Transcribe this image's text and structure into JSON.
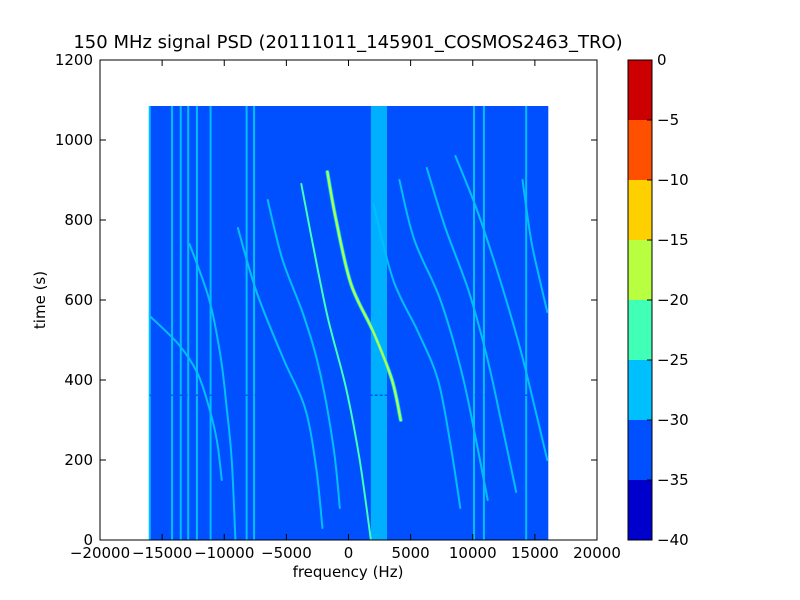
{
  "chart_data": {
    "type": "heatmap",
    "title": "150 MHz signal PSD (20111011_145901_COSMOS2463_TRO)",
    "xlabel": "frequency (Hz)",
    "ylabel": "time (s)",
    "xlim": [
      -20000,
      20000
    ],
    "ylim": [
      0,
      1200
    ],
    "xticks": [
      -20000,
      -15000,
      -10000,
      -5000,
      0,
      5000,
      10000,
      15000,
      20000
    ],
    "xtick_labels": [
      "−20000",
      "−15000",
      "−10000",
      "−5000",
      "0",
      "5000",
      "10000",
      "15000",
      "20000"
    ],
    "yticks": [
      0,
      200,
      400,
      600,
      800,
      1000,
      1200
    ],
    "ytick_labels": [
      "0",
      "200",
      "400",
      "600",
      "800",
      "1000",
      "1200"
    ],
    "data_extent": {
      "x": [
        -16000,
        16000
      ],
      "y": [
        0,
        1085
      ]
    },
    "background_level": -32,
    "colorbar": {
      "ticks": [
        0,
        -5,
        -10,
        -15,
        -20,
        -25,
        -30,
        -35,
        -40
      ],
      "tick_labels": [
        "0",
        "−5",
        "−10",
        "−15",
        "−20",
        "−25",
        "−30",
        "−35",
        "−40"
      ],
      "levels": [
        {
          "range": [
            -40,
            -35
          ],
          "color": "#0000cc"
        },
        {
          "range": [
            -35,
            -30
          ],
          "color": "#0050ff"
        },
        {
          "range": [
            -30,
            -25
          ],
          "color": "#00bfff"
        },
        {
          "range": [
            -25,
            -20
          ],
          "color": "#40ffb7"
        },
        {
          "range": [
            -20,
            -15
          ],
          "color": "#b7ff40"
        },
        {
          "range": [
            -15,
            -10
          ],
          "color": "#ffd000"
        },
        {
          "range": [
            -10,
            -5
          ],
          "color": "#ff5000"
        },
        {
          "range": [
            -5,
            0
          ],
          "color": "#cc0000"
        }
      ]
    },
    "vertical_lines": [
      {
        "x": -16000,
        "y": [
          0,
          1085
        ],
        "level": -28
      },
      {
        "x": -14200,
        "y": [
          0,
          1085
        ],
        "level": -29
      },
      {
        "x": -13500,
        "y": [
          0,
          1085
        ],
        "level": -29
      },
      {
        "x": -12900,
        "y": [
          0,
          1085
        ],
        "level": -29
      },
      {
        "x": -12200,
        "y": [
          0,
          1085
        ],
        "level": -28
      },
      {
        "x": -11100,
        "y": [
          0,
          1085
        ],
        "level": -28
      },
      {
        "x": -8200,
        "y": [
          0,
          1085
        ],
        "level": -26
      },
      {
        "x": -7600,
        "y": [
          0,
          1085
        ],
        "level": -26
      },
      {
        "x": 10100,
        "y": [
          0,
          1085
        ],
        "level": -27
      },
      {
        "x": 10900,
        "y": [
          0,
          1085
        ],
        "level": -28
      },
      {
        "x": 14300,
        "y": [
          0,
          1085
        ],
        "level": -29
      },
      {
        "x": 16000,
        "y": [
          0,
          1085
        ],
        "level": -30
      }
    ],
    "bands": [
      {
        "x": [
          1800,
          3100
        ],
        "y": [
          0,
          1085
        ],
        "level": -29
      }
    ],
    "horizontal_lines": [
      {
        "y": 362,
        "x": [
          -16000,
          16000
        ],
        "level": -30
      }
    ],
    "tracks": [
      {
        "x": [
          -1700,
          -1000,
          200,
          2000,
          3500,
          4200
        ],
        "t": [
          920,
          800,
          640,
          520,
          400,
          300
        ],
        "level": -16
      },
      {
        "x": [
          -3800,
          -3000,
          -1700,
          -200,
          900,
          1800
        ],
        "t": [
          890,
          760,
          560,
          380,
          200,
          0
        ],
        "level": -24
      },
      {
        "x": [
          -6500,
          -5300,
          -3600,
          -2300,
          -1200,
          -700
        ],
        "t": [
          850,
          700,
          560,
          420,
          230,
          80
        ],
        "level": -26
      },
      {
        "x": [
          -8900,
          -7400,
          -5200,
          -3500,
          -2600,
          -2100
        ],
        "t": [
          780,
          620,
          450,
          330,
          180,
          30
        ],
        "level": -28
      },
      {
        "x": [
          -12800,
          -11200,
          -10300,
          -9800,
          -9400,
          -9100
        ],
        "t": [
          740,
          600,
          460,
          330,
          200,
          0
        ],
        "level": -29
      },
      {
        "x": [
          -16000,
          -13700,
          -12200,
          -11300,
          -10600,
          -10200
        ],
        "t": [
          560,
          490,
          420,
          340,
          250,
          150
        ],
        "level": -28
      },
      {
        "x": [
          2000,
          3600,
          5600,
          7200,
          8200,
          9000
        ],
        "t": [
          840,
          650,
          520,
          400,
          240,
          80
        ],
        "level": -25
      },
      {
        "x": [
          4100,
          5300,
          7400,
          9100,
          10200,
          11200
        ],
        "t": [
          900,
          750,
          600,
          420,
          260,
          100
        ],
        "level": -27
      },
      {
        "x": [
          6300,
          7800,
          9700,
          11200,
          12400,
          13500
        ],
        "t": [
          930,
          780,
          620,
          450,
          280,
          120
        ],
        "level": -28
      },
      {
        "x": [
          8600,
          10400,
          12200,
          13800,
          15000,
          16000
        ],
        "t": [
          960,
          820,
          650,
          480,
          330,
          200
        ],
        "level": -29
      },
      {
        "x": [
          14000,
          14700,
          15400,
          16000
        ],
        "t": [
          900,
          750,
          650,
          570
        ],
        "level": -29
      }
    ]
  }
}
